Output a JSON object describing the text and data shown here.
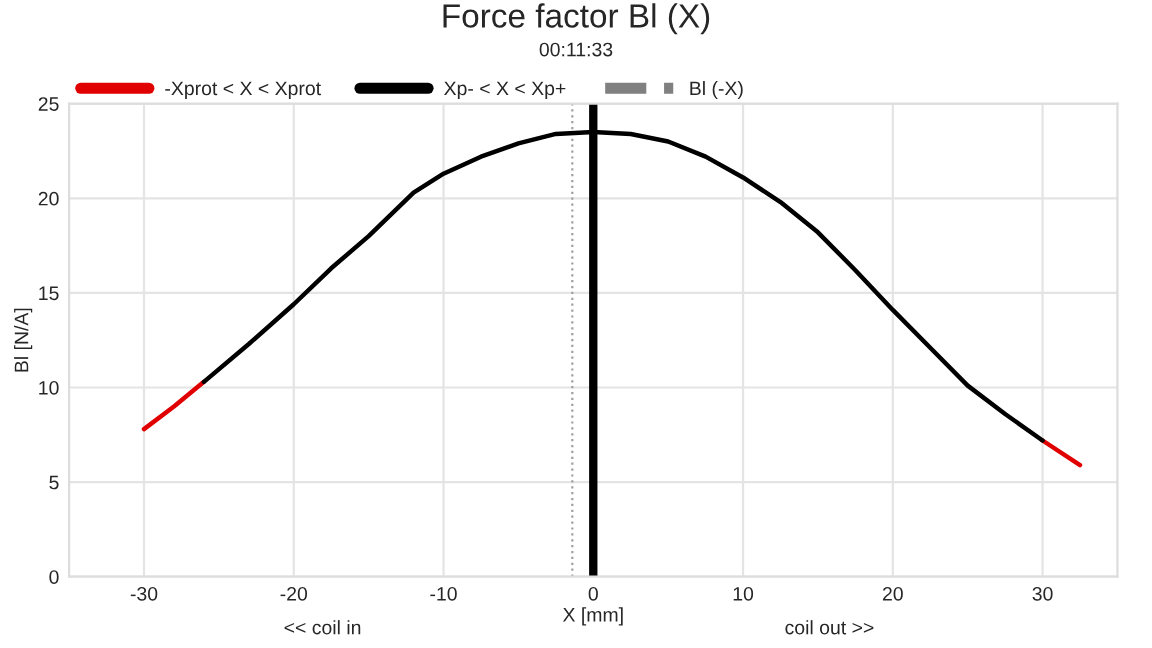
{
  "chart_data": {
    "type": "line",
    "title": "Force factor Bl (X)",
    "subtitle": "00:11:33",
    "xlabel": "X [mm]",
    "ylabel": "Bl [N/A]",
    "annotations": [
      "<< coil in",
      "coil out >>"
    ],
    "series": [
      {
        "name": "-Xprot < X < Xprot",
        "color": "#e00000",
        "x": [
          -30,
          -28,
          -26,
          -23,
          -20,
          -17.5,
          -15,
          -12,
          -10,
          -7.5,
          -5,
          -2.5,
          0,
          2.5,
          5,
          7.5,
          10,
          12.5,
          15,
          17.5,
          20,
          22.5,
          25,
          27.5,
          30,
          32.5
        ],
        "values": [
          7.8,
          9.0,
          10.3,
          null,
          null,
          null,
          null,
          null,
          null,
          null,
          null,
          null,
          null,
          null,
          null,
          null,
          null,
          null,
          null,
          null,
          null,
          null,
          null,
          null,
          7.2,
          5.9
        ]
      },
      {
        "name": "Xp- < X < Xp+",
        "color": "#000000",
        "x": [
          -26,
          -23,
          -20,
          -17.5,
          -15,
          -12,
          -10,
          -7.5,
          -5,
          -2.5,
          0,
          2.5,
          5,
          7.5,
          10,
          12.5,
          15,
          17.5,
          20,
          22.5,
          25,
          27.5,
          30
        ],
        "values": [
          10.3,
          12.3,
          14.4,
          16.3,
          18.0,
          20.3,
          21.3,
          22.2,
          22.9,
          23.4,
          23.5,
          23.4,
          23.0,
          22.2,
          21.1,
          19.8,
          18.2,
          16.2,
          14.1,
          12.1,
          10.1,
          8.6,
          7.2
        ]
      },
      {
        "name": "Bl (-X)",
        "color": "#808080",
        "line_style": "dashed"
      }
    ],
    "ref_lines": [
      {
        "axis": "x",
        "value": 0,
        "color": "#000000",
        "line_style": "solid"
      },
      {
        "axis": "x",
        "value": -1.4,
        "color": "#a0a0a0",
        "line_style": "dotted"
      }
    ],
    "xlim": [
      -35,
      35
    ],
    "ylim": [
      0,
      25
    ],
    "xticks": [
      -30,
      -20,
      -10,
      0,
      10,
      20,
      30
    ],
    "yticks": [
      0,
      5,
      10,
      15,
      20,
      25
    ],
    "grid": true,
    "legend": "top"
  }
}
